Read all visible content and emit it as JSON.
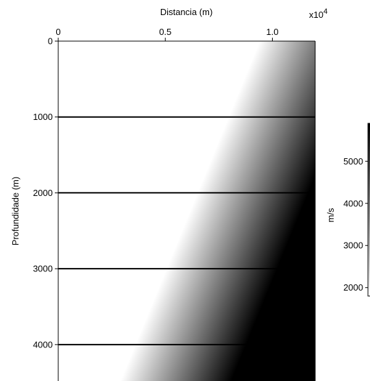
{
  "chart_data": {
    "type": "heatmap",
    "xlabel": "Distancia (m)",
    "ylabel": "Profundidade (m)",
    "x_exponent_label": "x10",
    "x_exponent_power": "4",
    "x_ticks": [
      {
        "value": 0,
        "label": "0"
      },
      {
        "value": 5000,
        "label": "0.5"
      },
      {
        "value": 10000,
        "label": "1.0"
      }
    ],
    "y_ticks": [
      {
        "value": 0,
        "label": "0"
      },
      {
        "value": 1000,
        "label": "1000"
      },
      {
        "value": 2000,
        "label": "2000"
      },
      {
        "value": 3000,
        "label": "3000"
      },
      {
        "value": 4000,
        "label": "4000"
      }
    ],
    "xlim": [
      0,
      12000
    ],
    "ylim": [
      0,
      4480
    ],
    "y_reversed": true,
    "x_axis_position": "top",
    "colormap": [
      "#ffffff",
      "#000000"
    ],
    "horizontal_lines": [
      1000,
      2000,
      3000,
      4000
    ],
    "velocity_gradient": {
      "front_x_at_top": 9400,
      "front_x_at_bottom": 2900,
      "gradient_width": 4800,
      "v_min": 1800,
      "v_max": 5900
    },
    "colorbar": {
      "label": "m/s",
      "range": [
        1800,
        5900
      ],
      "ticks": [
        {
          "value": 2000,
          "label": "2000"
        },
        {
          "value": 3000,
          "label": "3000"
        },
        {
          "value": 4000,
          "label": "4000"
        },
        {
          "value": 5000,
          "label": "5000"
        }
      ]
    }
  }
}
